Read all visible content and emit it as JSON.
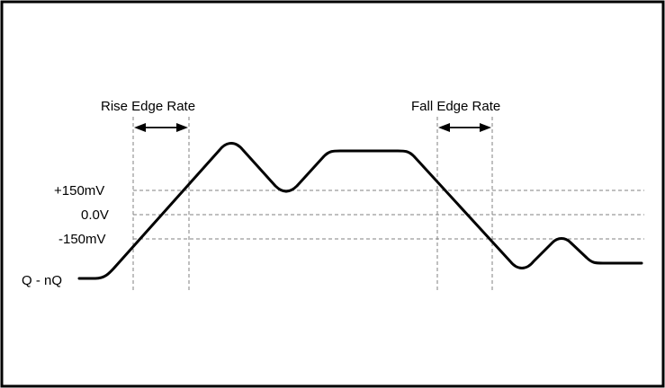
{
  "diagram": {
    "annotations": {
      "rise_edge_rate": "Rise Edge Rate",
      "fall_edge_rate": "Fall Edge Rate"
    },
    "levels": [
      {
        "label": "+150mV"
      },
      {
        "label": "0.0V"
      },
      {
        "label": "-150mV"
      }
    ],
    "signal_label": "Q - nQ",
    "colors": {
      "border": "#000000",
      "waveform": "#000000",
      "guides": "#808080"
    }
  }
}
